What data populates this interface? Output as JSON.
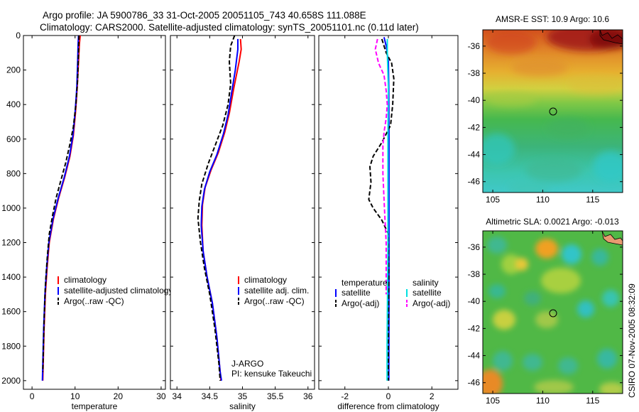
{
  "title": {
    "line1": "Argo profile: JA 5900786_33 31-Oct-2005 20051105_743 40.658S 111.088E",
    "line2": "Climatology: CARS2000. Satellite-adjusted climatology: synTS_20051101.nc (0.11d later)"
  },
  "credit": "CSIRO 07-Nov-2005 08:32:09",
  "chart_data": [
    {
      "type": "line",
      "id": "temperature",
      "xlabel": "temperature",
      "ylabel": "",
      "xlim": [
        -2,
        31
      ],
      "ylim": [
        0,
        2050
      ],
      "y_reversed": true,
      "xticks": [
        0,
        10,
        20,
        30
      ],
      "yticks": [
        0,
        200,
        400,
        600,
        800,
        1000,
        1200,
        1400,
        1600,
        1800,
        2000
      ],
      "legend": {
        "placement": "lower-right",
        "entries": [
          {
            "label": "climatology",
            "color": "#ff0000",
            "style": "solid"
          },
          {
            "label": "satellite-adjusted climatology",
            "color": "#0000ff",
            "style": "solid"
          },
          {
            "label": "Argo(..raw -QC)",
            "color": "#000000",
            "style": "dashed"
          }
        ]
      },
      "series": [
        {
          "name": "climatology",
          "color": "#ff0000",
          "style": "solid",
          "points": [
            [
              11.2,
              0
            ],
            [
              11.0,
              50
            ],
            [
              10.8,
              150
            ],
            [
              10.5,
              300
            ],
            [
              10.1,
              450
            ],
            [
              9.6,
              580
            ],
            [
              8.8,
              700
            ],
            [
              7.6,
              820
            ],
            [
              6.2,
              940
            ],
            [
              5.0,
              1060
            ],
            [
              4.0,
              1200
            ],
            [
              3.5,
              1350
            ],
            [
              3.1,
              1500
            ],
            [
              2.8,
              1700
            ],
            [
              2.6,
              1900
            ],
            [
              2.5,
              2000
            ]
          ]
        },
        {
          "name": "satellite-adjusted climatology",
          "color": "#0000ff",
          "style": "solid",
          "points": [
            [
              10.8,
              0
            ],
            [
              10.7,
              50
            ],
            [
              10.6,
              150
            ],
            [
              10.4,
              300
            ],
            [
              10.0,
              450
            ],
            [
              9.5,
              580
            ],
            [
              8.7,
              700
            ],
            [
              7.5,
              820
            ],
            [
              6.1,
              940
            ],
            [
              4.9,
              1060
            ],
            [
              3.9,
              1200
            ],
            [
              3.4,
              1350
            ],
            [
              3.0,
              1500
            ],
            [
              2.7,
              1700
            ],
            [
              2.5,
              1900
            ],
            [
              2.4,
              2000
            ]
          ]
        },
        {
          "name": "Argo(..raw -QC)",
          "color": "#000000",
          "style": "dashed",
          "points": [
            [
              10.9,
              0
            ],
            [
              10.8,
              100
            ],
            [
              10.6,
              250
            ],
            [
              10.2,
              400
            ],
            [
              9.6,
              530
            ],
            [
              8.8,
              630
            ],
            [
              7.8,
              740
            ],
            [
              6.7,
              840
            ],
            [
              5.6,
              940
            ],
            [
              4.8,
              1040
            ],
            [
              4.0,
              1150
            ],
            [
              3.5,
              1300
            ],
            [
              3.1,
              1450
            ],
            [
              2.8,
              1650
            ],
            [
              2.6,
              1850
            ],
            [
              2.5,
              1950
            ]
          ]
        }
      ]
    },
    {
      "type": "line",
      "id": "salinity",
      "xlabel": "salinity",
      "xlim": [
        33.9,
        36.1
      ],
      "ylim": [
        0,
        2050
      ],
      "y_reversed": true,
      "xticks": [
        34,
        34.5,
        35,
        35.5,
        36
      ],
      "legend": {
        "placement": "lower-right",
        "entries": [
          {
            "label": "climatology",
            "color": "#ff0000",
            "style": "solid"
          },
          {
            "label": "satellite adj. clim.",
            "color": "#0000ff",
            "style": "solid"
          },
          {
            "label": "Argo(..raw -QC)",
            "color": "#000000",
            "style": "dashed"
          }
        ]
      },
      "annotation": [
        "J-ARGO",
        "PI: kensuke Takeuchi"
      ],
      "series": [
        {
          "name": "climatology",
          "color": "#ff0000",
          "style": "solid",
          "points": [
            [
              34.97,
              20
            ],
            [
              34.98,
              80
            ],
            [
              34.95,
              150
            ],
            [
              34.87,
              300
            ],
            [
              34.8,
              450
            ],
            [
              34.73,
              560
            ],
            [
              34.63,
              680
            ],
            [
              34.52,
              780
            ],
            [
              34.43,
              880
            ],
            [
              34.39,
              980
            ],
            [
              34.38,
              1100
            ],
            [
              34.4,
              1250
            ],
            [
              34.46,
              1400
            ],
            [
              34.54,
              1550
            ],
            [
              34.61,
              1750
            ],
            [
              34.66,
              1950
            ],
            [
              34.67,
              2000
            ]
          ]
        },
        {
          "name": "satellite adj. clim.",
          "color": "#0000ff",
          "style": "solid",
          "points": [
            [
              34.93,
              20
            ],
            [
              34.93,
              80
            ],
            [
              34.89,
              200
            ],
            [
              34.84,
              320
            ],
            [
              34.78,
              460
            ],
            [
              34.71,
              570
            ],
            [
              34.61,
              690
            ],
            [
              34.5,
              790
            ],
            [
              34.42,
              890
            ],
            [
              34.38,
              990
            ],
            [
              34.37,
              1100
            ],
            [
              34.4,
              1250
            ],
            [
              34.46,
              1400
            ],
            [
              34.54,
              1550
            ],
            [
              34.61,
              1750
            ],
            [
              34.66,
              1950
            ],
            [
              34.68,
              2000
            ]
          ]
        },
        {
          "name": "Argo(..raw -QC)",
          "color": "#000000",
          "style": "dashed",
          "points": [
            [
              34.88,
              0
            ],
            [
              34.82,
              60
            ],
            [
              34.8,
              150
            ],
            [
              34.82,
              280
            ],
            [
              34.78,
              400
            ],
            [
              34.7,
              520
            ],
            [
              34.6,
              620
            ],
            [
              34.48,
              740
            ],
            [
              34.38,
              860
            ],
            [
              34.34,
              960
            ],
            [
              34.32,
              1060
            ],
            [
              34.36,
              1200
            ],
            [
              34.42,
              1350
            ],
            [
              34.5,
              1500
            ],
            [
              34.58,
              1700
            ],
            [
              34.64,
              1900
            ],
            [
              34.66,
              2000
            ]
          ]
        }
      ]
    },
    {
      "type": "line",
      "id": "difference",
      "xlabel": "difference from climatology",
      "xlim": [
        -3.2,
        3.2
      ],
      "ylim": [
        0,
        2050
      ],
      "y_reversed": true,
      "xticks": [
        -2,
        0,
        2
      ],
      "legend": {
        "placement": "lower-center",
        "groups": [
          {
            "heading": "temperature",
            "entries": [
              {
                "label": "satellite",
                "color": "#0000ff",
                "style": "solid"
              },
              {
                "label": "Argo(-adj)",
                "color": "#000000",
                "style": "dashed"
              }
            ]
          },
          {
            "heading": "salinity",
            "entries": [
              {
                "label": "satellite",
                "color": "#00e0e0",
                "style": "solid"
              },
              {
                "label": "Argo(-adj)",
                "color": "#ff00ff",
                "style": "dashed"
              }
            ]
          }
        ]
      },
      "series": [
        {
          "name": "temperature satellite",
          "color": "#0000ff",
          "style": "solid",
          "points": [
            [
              -0.2,
              10
            ],
            [
              -0.1,
              60
            ],
            [
              0.0,
              150
            ],
            [
              0.02,
              300
            ],
            [
              0.03,
              600
            ],
            [
              0.03,
              1000
            ],
            [
              0.03,
              1400
            ],
            [
              0.02,
              2000
            ]
          ]
        },
        {
          "name": "temperature Argo(-adj)",
          "color": "#000000",
          "style": "dashed",
          "points": [
            [
              -0.3,
              20
            ],
            [
              -0.1,
              100
            ],
            [
              0.15,
              160
            ],
            [
              0.25,
              250
            ],
            [
              0.2,
              400
            ],
            [
              0.1,
              520
            ],
            [
              -0.3,
              620
            ],
            [
              -0.7,
              700
            ],
            [
              -0.85,
              760
            ],
            [
              -0.8,
              850
            ],
            [
              -0.9,
              950
            ],
            [
              -0.7,
              1000
            ],
            [
              -0.3,
              1070
            ],
            [
              0.0,
              1150
            ],
            [
              0.02,
              1400
            ],
            [
              0.0,
              1800
            ],
            [
              0.0,
              2000
            ]
          ]
        },
        {
          "name": "salinity satellite",
          "color": "#00e0e0",
          "style": "solid",
          "points": [
            [
              -0.05,
              20
            ],
            [
              -0.05,
              100
            ],
            [
              0.0,
              300
            ],
            [
              -0.02,
              600
            ],
            [
              -0.02,
              900
            ],
            [
              -0.02,
              1200
            ],
            [
              -0.04,
              1500
            ],
            [
              -0.06,
              1800
            ],
            [
              -0.06,
              2000
            ]
          ]
        },
        {
          "name": "salinity Argo(-adj)",
          "color": "#ff00ff",
          "style": "dashed",
          "points": [
            [
              -0.5,
              20
            ],
            [
              -0.6,
              80
            ],
            [
              -0.45,
              160
            ],
            [
              -0.2,
              230
            ],
            [
              -0.1,
              320
            ],
            [
              -0.05,
              400
            ],
            [
              -0.1,
              480
            ],
            [
              -0.2,
              560
            ],
            [
              -0.25,
              640
            ],
            [
              -0.25,
              800
            ],
            [
              -0.2,
              950
            ],
            [
              -0.15,
              1080
            ],
            [
              -0.1,
              1200
            ],
            [
              -0.1,
              1500
            ]
          ]
        }
      ]
    },
    {
      "type": "heatmap",
      "id": "sst_map",
      "title": "AMSR-E SST: 10.9 Argo: 10.6",
      "xlim": [
        104,
        118
      ],
      "ylim": [
        -46.8,
        -34.8
      ],
      "xticks": [
        105,
        110,
        115
      ],
      "yticks": [
        -36,
        -38,
        -40,
        -42,
        -44,
        -46
      ],
      "marker": {
        "lon": 111.088,
        "lat": -40.658
      }
    },
    {
      "type": "heatmap",
      "id": "sla_map",
      "title": "Altimetric SLA: 0.0021 Argo: -0.013",
      "xlim": [
        104,
        118
      ],
      "ylim": [
        -46.8,
        -34.8
      ],
      "xticks": [
        105,
        110,
        115
      ],
      "yticks": [
        -36,
        -38,
        -40,
        -42,
        -44,
        -46
      ],
      "marker": {
        "lon": 111.088,
        "lat": -40.658
      }
    }
  ]
}
